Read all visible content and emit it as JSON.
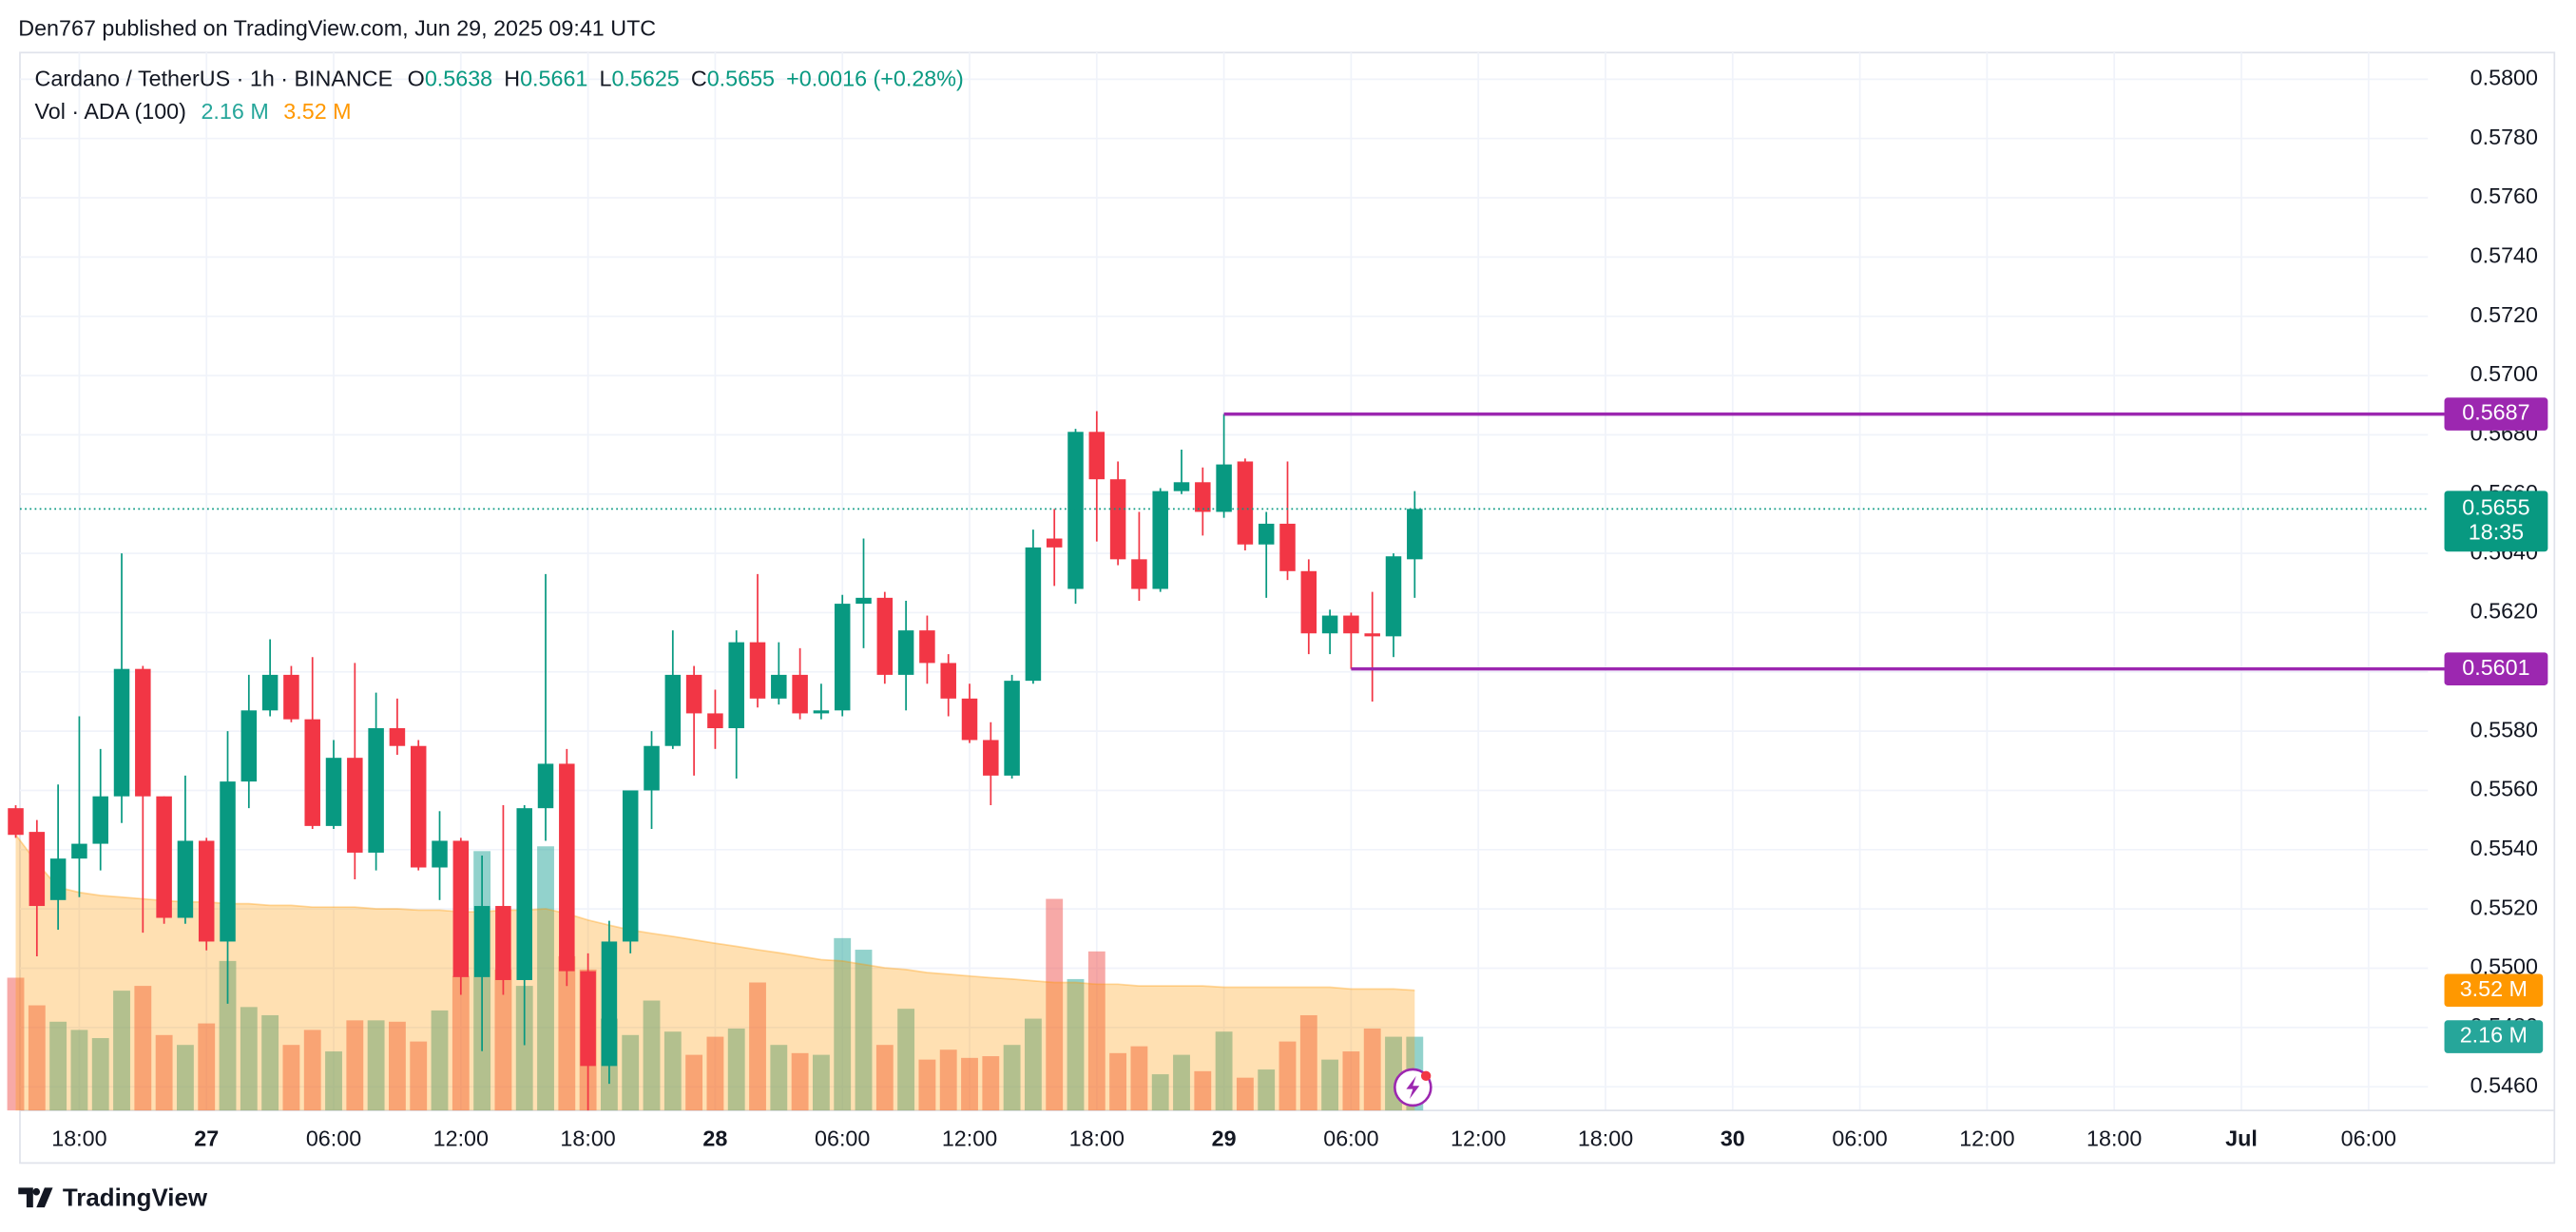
{
  "header": {
    "published": "Den767 published on TradingView.com, Jun 29, 2025 09:41 UTC"
  },
  "footer": {
    "brand": "TradingView"
  },
  "chart_data": {
    "type": "candlestick",
    "title": "Cardano / TetherUS · 1h · BINANCE",
    "ohlc_labels": [
      "O",
      "H",
      "L",
      "C"
    ],
    "change": "+0.0016 (+0.28%)",
    "countdown": "18:35",
    "up_color": "#089981",
    "down_color": "#f23645",
    "categories": [
      null,
      null,
      null,
      null,
      null,
      null,
      null,
      null,
      null,
      null,
      null,
      null,
      null,
      null,
      null,
      null,
      null,
      null,
      null,
      null,
      null,
      null,
      null,
      null,
      null,
      null,
      null,
      null,
      null,
      null,
      null,
      null,
      null,
      null,
      null,
      null,
      null,
      null,
      null,
      null,
      null,
      null,
      null,
      null,
      null,
      null,
      null,
      null,
      null,
      null,
      null,
      null,
      null,
      null,
      null,
      null,
      null,
      null,
      null,
      null,
      null,
      null,
      null,
      null,
      null,
      null,
      null
    ],
    "open": [
      0.5554,
      0.5546,
      0.5523,
      0.5537,
      0.5542,
      0.5558,
      0.5601,
      0.5558,
      0.5517,
      0.5543,
      0.5509,
      0.5563,
      0.5587,
      0.5599,
      0.5584,
      0.5548,
      0.5571,
      0.5539,
      0.5581,
      0.5575,
      0.5534,
      0.5543,
      0.5497,
      0.5521,
      0.5496,
      0.5554,
      0.5569,
      0.5499,
      0.5467,
      0.5509,
      0.556,
      0.5575,
      0.5599,
      0.5586,
      0.5581,
      0.561,
      0.5591,
      0.5599,
      0.5586,
      0.5587,
      0.5623,
      0.5625,
      0.5599,
      0.5614,
      0.5603,
      0.5591,
      0.5577,
      0.5565,
      0.5597,
      0.5645,
      0.5628,
      0.5681,
      0.5665,
      0.5638,
      0.5628,
      0.5661,
      0.5664,
      0.5654,
      0.5671,
      0.5643,
      0.565,
      0.5634,
      0.5613,
      0.5619,
      0.5613,
      0.5612,
      0.5638
    ],
    "high": [
      0.5555,
      0.555,
      0.5562,
      0.5585,
      0.5574,
      0.564,
      0.5602,
      0.5558,
      0.5565,
      0.5544,
      0.558,
      0.5599,
      0.5611,
      0.5602,
      0.5605,
      0.5577,
      0.5603,
      0.5593,
      0.5591,
      0.5577,
      0.5553,
      0.5544,
      0.5538,
      0.5555,
      0.5555,
      0.5633,
      0.5574,
      0.5505,
      0.5516,
      0.556,
      0.558,
      0.5614,
      0.5602,
      0.5594,
      0.5614,
      0.5633,
      0.561,
      0.5608,
      0.5596,
      0.5626,
      0.5645,
      0.5627,
      0.5624,
      0.5619,
      0.5606,
      0.5596,
      0.5583,
      0.5599,
      0.5648,
      0.5655,
      0.5682,
      0.5688,
      0.5671,
      0.5654,
      0.5662,
      0.5675,
      0.5669,
      0.5687,
      0.5672,
      0.5654,
      0.5671,
      0.5638,
      0.5621,
      0.562,
      0.5627,
      0.564,
      0.5661
    ],
    "low": [
      0.5544,
      0.5504,
      0.5513,
      0.5524,
      0.5533,
      0.5549,
      0.5512,
      0.5515,
      0.5515,
      0.5506,
      0.5488,
      0.5554,
      0.5585,
      0.5583,
      0.5547,
      0.5547,
      0.553,
      0.5533,
      0.5572,
      0.5533,
      0.5523,
      0.5491,
      0.5472,
      0.5491,
      0.5474,
      0.5543,
      0.5494,
      0.5452,
      0.5461,
      0.5505,
      0.5547,
      0.5574,
      0.5565,
      0.5574,
      0.5564,
      0.5588,
      0.5589,
      0.5584,
      0.5584,
      0.5585,
      0.5608,
      0.5596,
      0.5587,
      0.5596,
      0.5585,
      0.5576,
      0.5555,
      0.5564,
      0.5596,
      0.5629,
      0.5623,
      0.5644,
      0.5636,
      0.5624,
      0.5627,
      0.566,
      0.5646,
      0.5652,
      0.5641,
      0.5625,
      0.5631,
      0.5606,
      0.5606,
      0.5601,
      0.559,
      0.5605,
      0.5625
    ],
    "close": [
      0.5545,
      0.5521,
      0.5537,
      0.5542,
      0.5558,
      0.5601,
      0.5558,
      0.5517,
      0.5543,
      0.5509,
      0.5563,
      0.5587,
      0.5599,
      0.5584,
      0.5548,
      0.5571,
      0.5539,
      0.5581,
      0.5575,
      0.5534,
      0.5543,
      0.5497,
      0.5521,
      0.5496,
      0.5554,
      0.5569,
      0.5499,
      0.5467,
      0.5509,
      0.556,
      0.5575,
      0.5599,
      0.5586,
      0.5581,
      0.561,
      0.5591,
      0.5599,
      0.5586,
      0.5587,
      0.5623,
      0.5625,
      0.5599,
      0.5614,
      0.5603,
      0.5591,
      0.5577,
      0.5565,
      0.5597,
      0.5642,
      0.5642,
      0.5681,
      0.5665,
      0.5638,
      0.5628,
      0.5661,
      0.5664,
      0.5654,
      0.567,
      0.5643,
      0.565,
      0.5634,
      0.5613,
      0.5619,
      0.5613,
      0.5612,
      0.5639,
      0.5655
    ],
    "volume": {
      "name": "Vol · ADA (100)",
      "values": [
        3.89,
        3.08,
        2.6,
        2.36,
        2.12,
        3.51,
        3.65,
        2.21,
        1.92,
        2.55,
        4.38,
        3.03,
        2.79,
        1.92,
        2.36,
        1.73,
        2.64,
        2.64,
        2.6,
        2.02,
        2.93,
        3.94,
        7.6,
        4.13,
        3.65,
        7.74,
        4.52,
        4.13,
        2.69,
        2.21,
        3.22,
        2.31,
        1.63,
        2.16,
        2.4,
        3.75,
        1.92,
        1.68,
        1.63,
        5.05,
        4.71,
        1.92,
        2.98,
        1.49,
        1.78,
        1.54,
        1.59,
        1.92,
        2.69,
        6.2,
        3.85,
        4.66,
        1.68,
        1.88,
        1.06,
        1.63,
        1.15,
        2.31,
        0.96,
        1.2,
        2.02,
        2.79,
        1.49,
        1.73,
        2.4,
        2.16,
        2.16
      ],
      "last_label": "2.16 M",
      "ma_values": [
        8.08,
        7.26,
        6.54,
        6.39,
        6.3,
        6.25,
        6.2,
        6.15,
        6.11,
        6.11,
        6.06,
        6.06,
        6.01,
        6.01,
        5.96,
        5.96,
        5.96,
        5.91,
        5.91,
        5.87,
        5.87,
        5.82,
        5.82,
        5.87,
        5.87,
        5.91,
        5.77,
        5.58,
        5.43,
        5.29,
        5.19,
        5.1,
        5.0,
        4.9,
        4.81,
        4.71,
        4.62,
        4.52,
        4.42,
        4.38,
        4.28,
        4.18,
        4.13,
        4.04,
        3.99,
        3.94,
        3.89,
        3.85,
        3.8,
        3.75,
        3.75,
        3.7,
        3.7,
        3.65,
        3.65,
        3.65,
        3.65,
        3.61,
        3.61,
        3.61,
        3.61,
        3.61,
        3.61,
        3.56,
        3.56,
        3.56,
        3.52
      ],
      "ma_last_label": "3.52 M",
      "ma_color": "#ff9800",
      "ylim": [
        0,
        31
      ]
    },
    "hline_color": "#9c27b0",
    "hlines": [
      {
        "value": 0.5687,
        "start": 57
      },
      {
        "value": 0.5601,
        "start": 63
      }
    ],
    "xlim": [
      0.2,
      113.8
    ],
    "xticks": [
      {
        "value": 3,
        "label": "18:00"
      },
      {
        "value": 9,
        "label": "27"
      },
      {
        "value": 15,
        "label": "06:00"
      },
      {
        "value": 21,
        "label": "12:00"
      },
      {
        "value": 27,
        "label": "18:00"
      },
      {
        "value": 33,
        "label": "28"
      },
      {
        "value": 39,
        "label": "06:00"
      },
      {
        "value": 45,
        "label": "12:00"
      },
      {
        "value": 51,
        "label": "18:00"
      },
      {
        "value": 57,
        "label": "29"
      },
      {
        "value": 63,
        "label": "06:00"
      },
      {
        "value": 69,
        "label": "12:00"
      },
      {
        "value": 75,
        "label": "18:00"
      },
      {
        "value": 81,
        "label": "30"
      },
      {
        "value": 87,
        "label": "06:00"
      },
      {
        "value": 93,
        "label": "12:00"
      },
      {
        "value": 99,
        "label": "18:00"
      },
      {
        "value": 105,
        "label": "Jul"
      },
      {
        "value": 111,
        "label": "06:00"
      }
    ],
    "ylim": [
      0.5452,
      0.5809
    ],
    "yticks": [
      {
        "value": 0.546,
        "label": "0.5460"
      },
      {
        "value": 0.548,
        "label": "0.5480"
      },
      {
        "value": 0.55,
        "label": "0.5500"
      },
      {
        "value": 0.552,
        "label": "0.5520"
      },
      {
        "value": 0.554,
        "label": "0.5540"
      },
      {
        "value": 0.556,
        "label": "0.5560"
      },
      {
        "value": 0.558,
        "label": "0.5580"
      },
      {
        "value": 0.56,
        "label": "0.5600"
      },
      {
        "value": 0.562,
        "label": "0.5620"
      },
      {
        "value": 0.564,
        "label": "0.5640"
      },
      {
        "value": 0.566,
        "label": "0.5660"
      },
      {
        "value": 0.568,
        "label": "0.5680"
      },
      {
        "value": 0.57,
        "label": "0.5700"
      },
      {
        "value": 0.572,
        "label": "0.5720"
      },
      {
        "value": 0.574,
        "label": "0.5740"
      },
      {
        "value": 0.576,
        "label": "0.5760"
      },
      {
        "value": 0.578,
        "label": "0.5780"
      },
      {
        "value": 0.58,
        "label": "0.5800"
      }
    ],
    "grid": true
  }
}
